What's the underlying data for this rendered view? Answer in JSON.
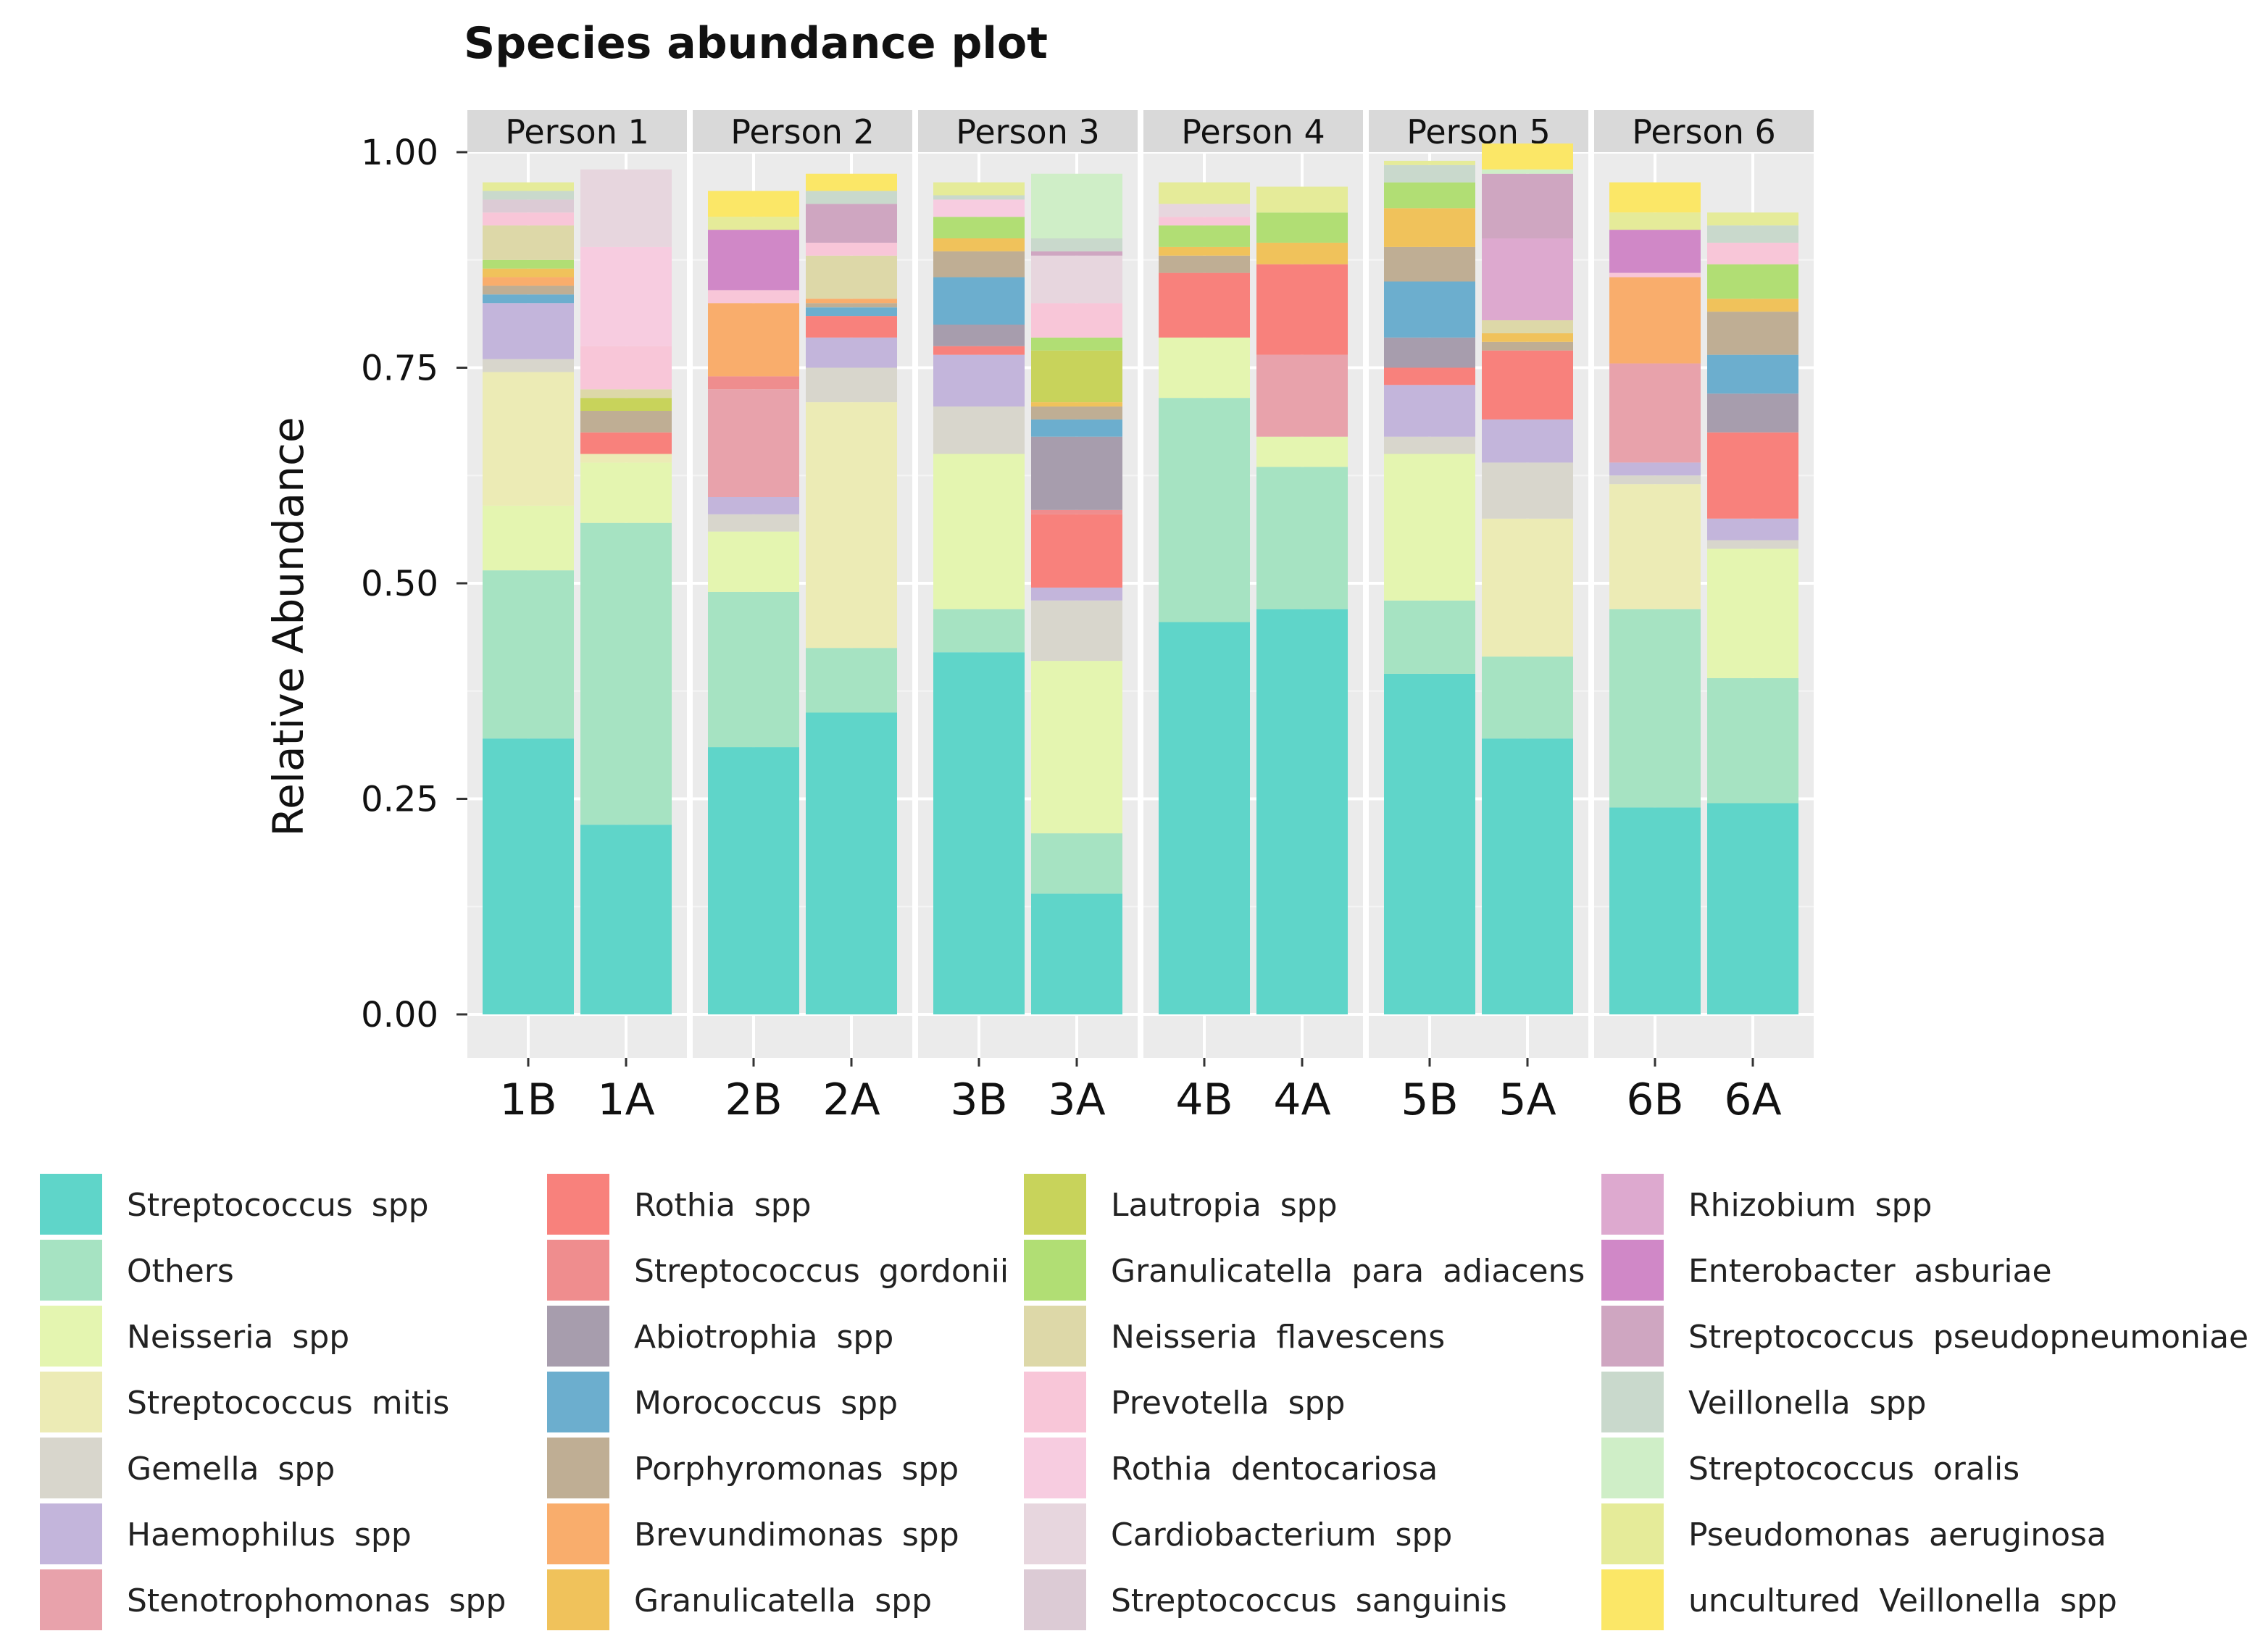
{
  "chart_data": {
    "type": "bar",
    "stacked": true,
    "title": "Species abundance plot",
    "xlabel": "",
    "ylabel": "Relative Abundance",
    "ylim": [
      0,
      1
    ],
    "yticks": [
      "0.00",
      "0.25",
      "0.50",
      "0.75",
      "1.00"
    ],
    "facets": [
      "Person 1",
      "Person 2",
      "Person 3",
      "Person 4",
      "Person 5",
      "Person 6"
    ],
    "categories": [
      "1B",
      "1A",
      "2B",
      "2A",
      "3B",
      "3A",
      "4B",
      "4A",
      "5B",
      "5A",
      "6B",
      "6A"
    ],
    "legend_position": "bottom",
    "series": [
      {
        "name": "Streptococcus spp",
        "color": "#5fd5c9",
        "values": [
          0.32,
          0.22,
          0.31,
          0.35,
          0.42,
          0.14,
          0.455,
          0.47,
          0.395,
          0.32,
          0.24,
          0.245
        ]
      },
      {
        "name": "Others",
        "color": "#a6e3c2",
        "values": [
          0.195,
          0.35,
          0.18,
          0.075,
          0.05,
          0.07,
          0.26,
          0.165,
          0.085,
          0.095,
          0.23,
          0.145
        ]
      },
      {
        "name": "Neisseria spp",
        "color": "#e4f5b0",
        "values": [
          0.075,
          0.07,
          0.07,
          0.0,
          0.18,
          0.2,
          0.07,
          0.035,
          0.17,
          0.0,
          0.0,
          0.15
        ]
      },
      {
        "name": "Streptococcus mitis",
        "color": "#ecebb5",
        "values": [
          0.155,
          0.01,
          0.0,
          0.285,
          0.0,
          0.0,
          0.0,
          0.0,
          0.0,
          0.16,
          0.145,
          0.0
        ]
      },
      {
        "name": "Gemella spp",
        "color": "#d8d6cc",
        "values": [
          0.015,
          0.0,
          0.02,
          0.04,
          0.055,
          0.07,
          0.0,
          0.0,
          0.02,
          0.065,
          0.01,
          0.01
        ]
      },
      {
        "name": "Haemophilus spp",
        "color": "#c3b5db",
        "values": [
          0.065,
          0.0,
          0.02,
          0.035,
          0.06,
          0.015,
          0.0,
          0.0,
          0.06,
          0.05,
          0.015,
          0.025
        ]
      },
      {
        "name": "Stenotrophomonas spp",
        "color": "#e8a2ab",
        "values": [
          0.0,
          0.0,
          0.125,
          0.0,
          0.0,
          0.0,
          0.0,
          0.095,
          0.0,
          0.0,
          0.115,
          0.0
        ]
      },
      {
        "name": "Rothia spp",
        "color": "#f8817c",
        "values": [
          0.0,
          0.025,
          0.0,
          0.025,
          0.01,
          0.085,
          0.075,
          0.105,
          0.02,
          0.08,
          0.0,
          0.1
        ]
      },
      {
        "name": "Streptococcus gordonii",
        "color": "#ef8d8e",
        "values": [
          0.0,
          0.0,
          0.015,
          0.0,
          0.0,
          0.005,
          0.0,
          0.0,
          0.0,
          0.0,
          0.0,
          0.0
        ]
      },
      {
        "name": "Abiotrophia spp",
        "color": "#a79dad",
        "values": [
          0.0,
          0.0,
          0.0,
          0.0,
          0.025,
          0.085,
          0.0,
          0.0,
          0.035,
          0.0,
          0.0,
          0.045
        ]
      },
      {
        "name": "Morococcus spp",
        "color": "#6caece",
        "values": [
          0.01,
          0.0,
          0.0,
          0.01,
          0.055,
          0.02,
          0.0,
          0.0,
          0.065,
          0.0,
          0.0,
          0.045
        ]
      },
      {
        "name": "Porphyromonas spp",
        "color": "#bfae94",
        "values": [
          0.01,
          0.025,
          0.0,
          0.005,
          0.03,
          0.015,
          0.02,
          0.0,
          0.04,
          0.01,
          0.0,
          0.05
        ]
      },
      {
        "name": "Brevundimonas spp",
        "color": "#f9ad6c",
        "values": [
          0.01,
          0.0,
          0.085,
          0.005,
          0.0,
          0.0,
          0.0,
          0.0,
          0.0,
          0.0,
          0.1,
          0.0
        ]
      },
      {
        "name": "Granulicatella spp",
        "color": "#f0c25b",
        "values": [
          0.01,
          0.0,
          0.0,
          0.0,
          0.015,
          0.005,
          0.01,
          0.025,
          0.045,
          0.01,
          0.0,
          0.015
        ]
      },
      {
        "name": "Lautropia spp",
        "color": "#c8d35b",
        "values": [
          0.0,
          0.015,
          0.0,
          0.0,
          0.0,
          0.06,
          0.0,
          0.0,
          0.0,
          0.0,
          0.0,
          0.0
        ]
      },
      {
        "name": "Granulicatella para adiacens",
        "color": "#b1de74",
        "values": [
          0.01,
          0.0,
          0.0,
          0.0,
          0.025,
          0.015,
          0.025,
          0.035,
          0.03,
          0.0,
          0.0,
          0.04
        ]
      },
      {
        "name": "Neisseria flavescens",
        "color": "#ddd8a8",
        "values": [
          0.04,
          0.01,
          0.0,
          0.05,
          0.0,
          0.0,
          0.0,
          0.0,
          0.0,
          0.015,
          0.0,
          0.0
        ]
      },
      {
        "name": "Prevotella spp",
        "color": "#f8c6d8",
        "values": [
          0.015,
          0.05,
          0.015,
          0.015,
          0.0,
          0.04,
          0.01,
          0.0,
          0.0,
          0.0,
          0.005,
          0.025
        ]
      },
      {
        "name": "Rothia dentocariosa",
        "color": "#f7cce0",
        "values": [
          0.0,
          0.115,
          0.0,
          0.0,
          0.02,
          0.0,
          0.0,
          0.0,
          0.0,
          0.0,
          0.0,
          0.0
        ]
      },
      {
        "name": "Cardiobacterium spp",
        "color": "#e7d6de",
        "values": [
          0.0,
          0.09,
          0.0,
          0.0,
          0.0,
          0.055,
          0.015,
          0.0,
          0.0,
          0.0,
          0.0,
          0.0
        ]
      },
      {
        "name": "Streptococcus sanguinis",
        "color": "#dccbd5",
        "values": [
          0.015,
          0.0,
          0.0,
          0.0,
          0.0,
          0.0,
          0.0,
          0.0,
          0.0,
          0.0,
          0.0,
          0.0
        ]
      },
      {
        "name": "Rhizobium spp",
        "color": "#dda9cf",
        "values": [
          0.0,
          0.0,
          0.0,
          0.0,
          0.0,
          0.0,
          0.0,
          0.0,
          0.0,
          0.095,
          0.0,
          0.0
        ]
      },
      {
        "name": "Enterobacter asburiae",
        "color": "#d088c7",
        "values": [
          0.0,
          0.0,
          0.07,
          0.0,
          0.0,
          0.0,
          0.0,
          0.0,
          0.0,
          0.0,
          0.05,
          0.0
        ]
      },
      {
        "name": "Streptococcus pseudopneumoniae",
        "color": "#cfa6c1",
        "values": [
          0.0,
          0.0,
          0.0,
          0.045,
          0.0,
          0.005,
          0.0,
          0.0,
          0.0,
          0.075,
          0.0,
          0.0
        ]
      },
      {
        "name": "Veillonella spp",
        "color": "#c9d9cc",
        "values": [
          0.01,
          0.0,
          0.0,
          0.015,
          0.005,
          0.015,
          0.0,
          0.0,
          0.02,
          0.0,
          0.0,
          0.02
        ]
      },
      {
        "name": "Streptococcus oralis",
        "color": "#cfeec7",
        "values": [
          0.0,
          0.0,
          0.0,
          0.0,
          0.0,
          0.075,
          0.0,
          0.0,
          0.0,
          0.005,
          0.0,
          0.0
        ]
      },
      {
        "name": "Pseudomonas aeruginosa",
        "color": "#e5eb99",
        "values": [
          0.01,
          0.0,
          0.015,
          0.0,
          0.015,
          0.0,
          0.025,
          0.03,
          0.005,
          0.0,
          0.02,
          0.015
        ]
      },
      {
        "name": "uncultured Veillonella spp",
        "color": "#fbe767",
        "values": [
          0.0,
          0.0,
          0.03,
          0.02,
          0.0,
          0.0,
          0.0,
          0.0,
          0.0,
          0.03,
          0.035,
          0.0
        ]
      }
    ]
  }
}
